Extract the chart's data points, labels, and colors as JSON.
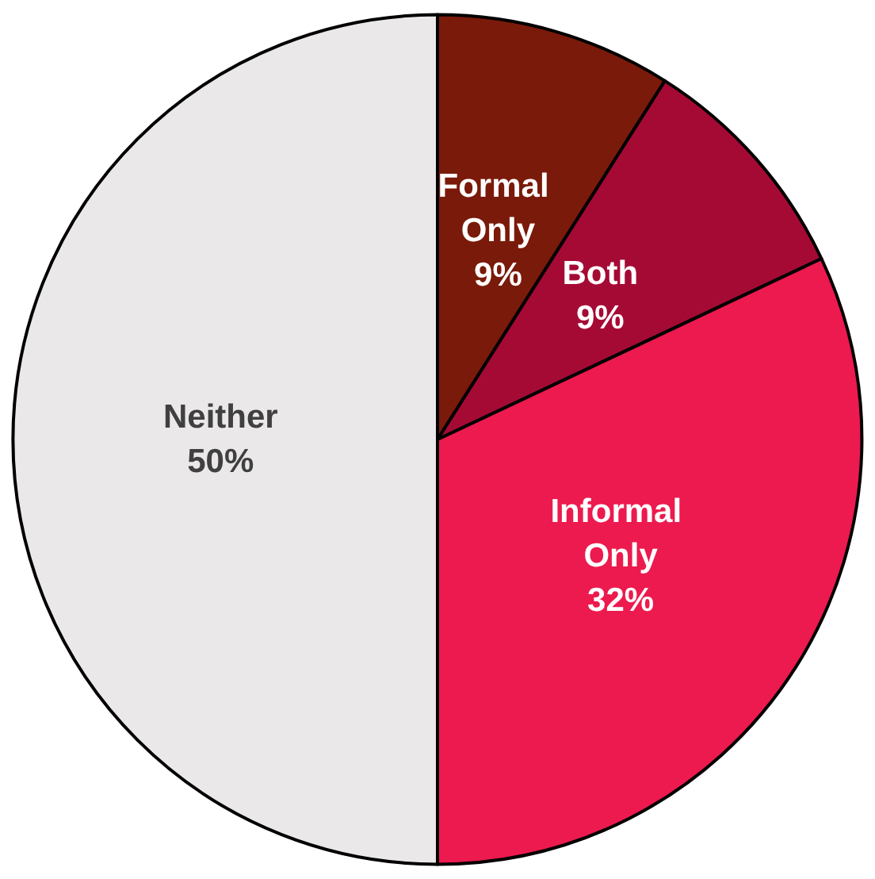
{
  "chart_data": {
    "type": "pie",
    "categories": [
      "Formal Only",
      "Both",
      "Informal Only",
      "Neither"
    ],
    "values": [
      9,
      9,
      32,
      50
    ],
    "value_labels": [
      "9%",
      "9%",
      "32%",
      "50%"
    ],
    "colors": [
      "#7a1a0a",
      "#a50a35",
      "#ec1a4e",
      "#ebe8e9"
    ],
    "legend": false
  }
}
